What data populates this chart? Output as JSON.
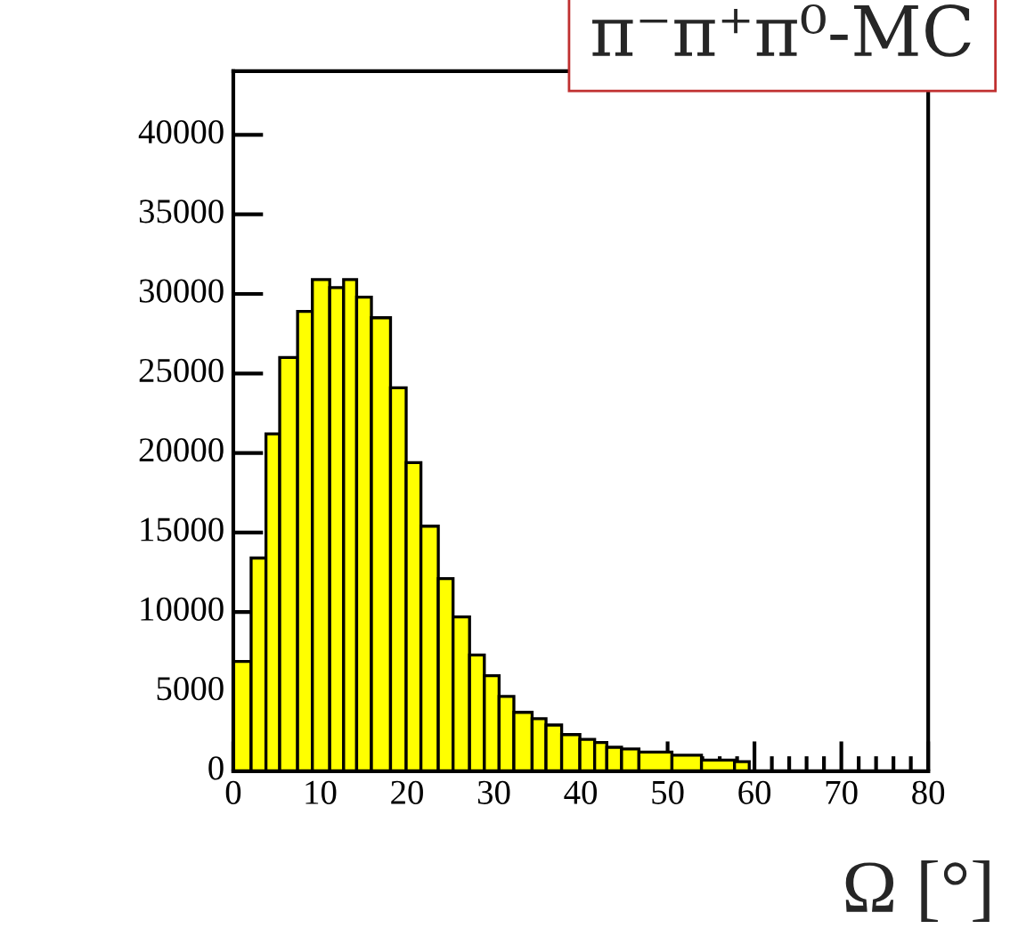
{
  "chart_data": {
    "type": "histogram",
    "title": "π⁻π⁺π⁰-MC",
    "xlabel": "Ω [°]",
    "bins": [
      0,
      2.05,
      3.76,
      5.34,
      7.4,
      9.1,
      11.1,
      12.7,
      14.2,
      15.9,
      18.1,
      19.9,
      21.6,
      23.6,
      25.3,
      27.2,
      28.9,
      30.6,
      32.3,
      34.4,
      36.0,
      37.8,
      39.9,
      41.6,
      43.0,
      44.7,
      46.7,
      50.5,
      53.9,
      57.7,
      59.4
    ],
    "values": [
      6900,
      13400,
      21200,
      26000,
      28900,
      30900,
      30400,
      30900,
      29800,
      28500,
      24100,
      19400,
      15400,
      12100,
      9700,
      7300,
      6000,
      4700,
      3700,
      3300,
      2900,
      2300,
      2000,
      1800,
      1500,
      1400,
      1200,
      1000,
      700,
      600
    ],
    "color": "#ffff00",
    "xlim": [
      0,
      80
    ],
    "xticks": [
      0,
      10,
      20,
      30,
      40,
      50,
      60,
      70,
      80
    ],
    "ylim": [
      0,
      44000
    ],
    "yticks": [
      0,
      5000,
      10000,
      15000,
      20000,
      25000,
      30000,
      35000,
      40000
    ],
    "grid": false,
    "legend": false
  }
}
